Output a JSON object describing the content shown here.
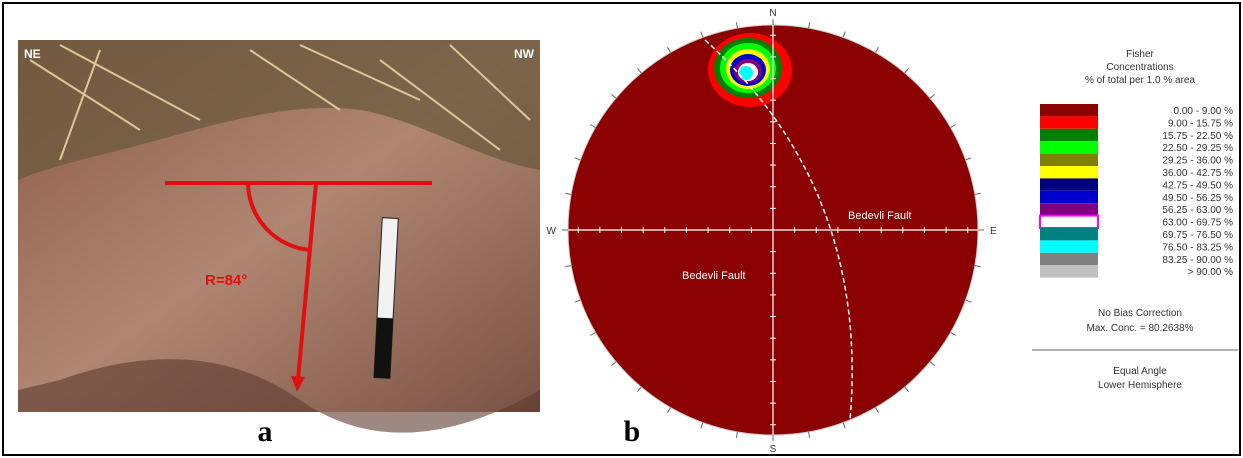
{
  "panel_a": {
    "labels": {
      "left": "NE",
      "right": "NW",
      "angle": "R=84°"
    },
    "caption": "a"
  },
  "panel_b": {
    "caption": "b",
    "directions": {
      "north": "N",
      "south": "S",
      "west": "W",
      "east": "E"
    },
    "fault_labels": [
      "Bedevli Fault",
      "Bedevli Fault"
    ],
    "legend": {
      "title": [
        "Fisher",
        "Concentrations",
        "% of total per 1.0 % area"
      ],
      "items": [
        {
          "label": "0.00 - 9.00 %",
          "color": "#8b0000"
        },
        {
          "label": "9.00 - 15.75 %",
          "color": "#ff0000"
        },
        {
          "label": "15.75 - 22.50 %",
          "color": "#008000"
        },
        {
          "label": "22.50 - 29.25 %",
          "color": "#00ff00"
        },
        {
          "label": "29.25 - 36.00 %",
          "color": "#808000"
        },
        {
          "label": "36.00 - 42.75 %",
          "color": "#ffff00"
        },
        {
          "label": "42.75 - 49.50 %",
          "color": "#000080"
        },
        {
          "label": "49.50 - 56.25 %",
          "color": "#0000cd"
        },
        {
          "label": "56.25 - 63.00 %",
          "color": "#800080"
        },
        {
          "label": "63.00 - 69.75 %",
          "color": "#ffffff"
        },
        {
          "label": "69.75 - 76.50 %",
          "color": "#008080"
        },
        {
          "label": "76.50 - 83.25 %",
          "color": "#00ffff"
        },
        {
          "label": "83.25 - 90.00 %",
          "color": "#808080"
        },
        {
          "label": "> 90.00 %",
          "color": "#c0c0c0"
        }
      ],
      "notes": [
        "No Bias Correction",
        "Max. Conc. = 80.2638%"
      ],
      "projection": [
        "Equal Angle",
        "Lower Hemisphere"
      ]
    }
  }
}
